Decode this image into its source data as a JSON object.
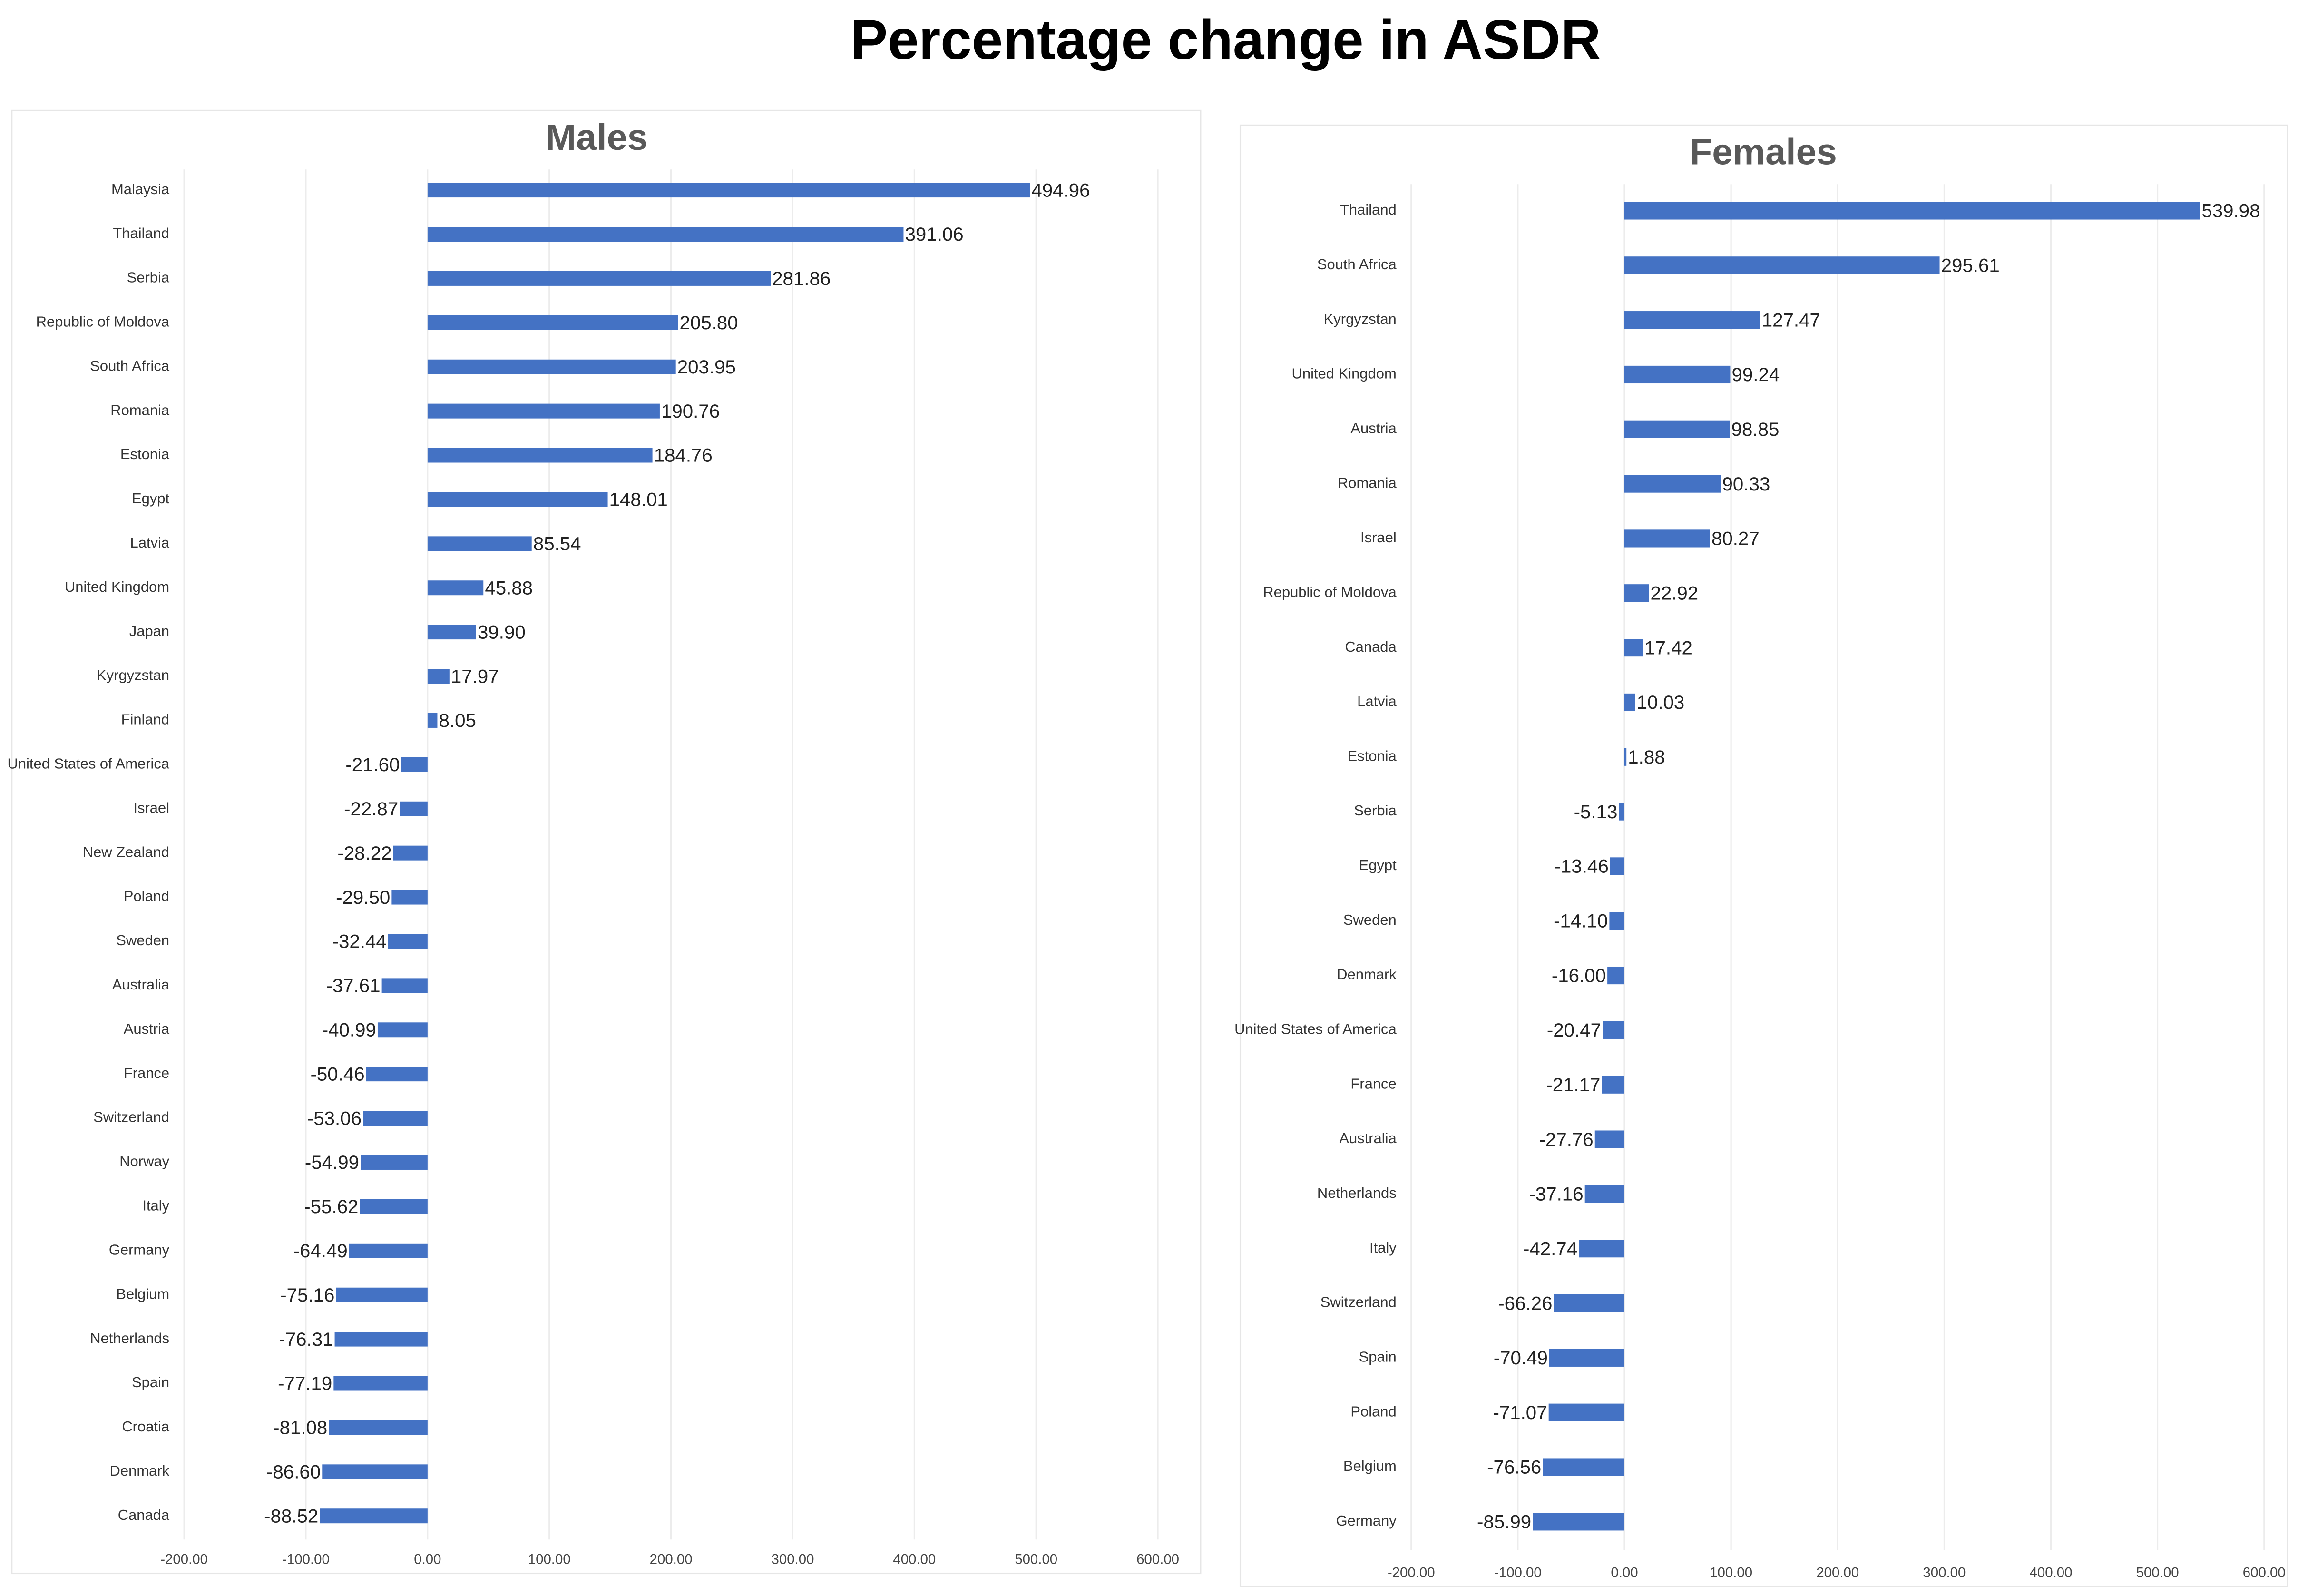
{
  "title": "Percentage change in ASDR",
  "chart_data": [
    {
      "type": "barh",
      "title": "Males",
      "color": "#4472c4",
      "grid": true,
      "categories": [
        "Malaysia",
        "Thailand",
        "Serbia",
        "Republic of Moldova",
        "South Africa",
        "Romania",
        "Estonia",
        "Egypt",
        "Latvia",
        "United Kingdom",
        "Japan",
        "Kyrgyzstan",
        "Finland",
        "United States of America",
        "Israel",
        "New Zealand",
        "Poland",
        "Sweden",
        "Australia",
        "Austria",
        "France",
        "Switzerland",
        "Norway",
        "Italy",
        "Germany",
        "Belgium",
        "Netherlands",
        "Spain",
        "Croatia",
        "Denmark",
        "Canada"
      ],
      "values": [
        494.96,
        391.06,
        281.86,
        205.8,
        203.95,
        190.76,
        184.76,
        148.01,
        85.54,
        45.88,
        39.9,
        17.97,
        8.05,
        -21.6,
        -22.87,
        -28.22,
        -29.5,
        -32.44,
        -37.61,
        -40.99,
        -50.46,
        -53.06,
        -54.99,
        -55.62,
        -64.49,
        -75.16,
        -76.31,
        -77.19,
        -81.08,
        -86.6,
        -88.52
      ],
      "value_labels": [
        "494.96",
        "391.06",
        "281.86",
        "205.80",
        "203.95",
        "190.76",
        "184.76",
        "148.01",
        "85.54",
        "45.88",
        "39.90",
        "17.97",
        "8.05",
        "-21.60",
        "-22.87",
        "-28.22",
        "-29.50",
        "-32.44",
        "-37.61",
        "-40.99",
        "-50.46",
        "-53.06",
        "-54.99",
        "-55.62",
        "-64.49",
        "-75.16",
        "-76.31",
        "-77.19",
        "-81.08",
        "-86.60",
        "-88.52"
      ],
      "xlim": [
        -200,
        600
      ],
      "xticks": [
        {
          "value": -200,
          "label": "-200.00"
        },
        {
          "value": -100,
          "label": "-100.00"
        },
        {
          "value": 0,
          "label": "0.00"
        },
        {
          "value": 100,
          "label": "100.00"
        },
        {
          "value": 200,
          "label": "200.00"
        },
        {
          "value": 300,
          "label": "300.00"
        },
        {
          "value": 400,
          "label": "400.00"
        },
        {
          "value": 500,
          "label": "500.00"
        },
        {
          "value": 600,
          "label": "600.00"
        }
      ]
    },
    {
      "type": "barh",
      "title": "Females",
      "color": "#4472c4",
      "grid": true,
      "categories": [
        "Thailand",
        "South Africa",
        "Kyrgyzstan",
        "United Kingdom",
        "Austria",
        "Romania",
        "Israel",
        "Republic of Moldova",
        "Canada",
        "Latvia",
        "Estonia",
        "Serbia",
        "Egypt",
        "Sweden",
        "Denmark",
        "United States of America",
        "France",
        "Australia",
        "Netherlands",
        "Italy",
        "Switzerland",
        "Spain",
        "Poland",
        "Belgium",
        "Germany"
      ],
      "values": [
        539.98,
        295.61,
        127.47,
        99.24,
        98.85,
        90.33,
        80.27,
        22.92,
        17.42,
        10.03,
        1.88,
        -5.13,
        -13.46,
        -14.1,
        -16,
        -20.47,
        -21.17,
        -27.76,
        -37.16,
        -42.74,
        -66.26,
        -70.49,
        -71.07,
        -76.56,
        -85.99
      ],
      "value_labels": [
        "539.98",
        "295.61",
        "127.47",
        "99.24",
        "98.85",
        "90.33",
        "80.27",
        "22.92",
        "17.42",
        "10.03",
        "1.88",
        "-5.13",
        "-13.46",
        "-14.10",
        "-16.00",
        "-20.47",
        "-21.17",
        "-27.76",
        "-37.16",
        "-42.74",
        "-66.26",
        "-70.49",
        "-71.07",
        "-76.56",
        "-85.99"
      ],
      "xlim": [
        -200,
        600
      ],
      "xticks": [
        {
          "value": -200,
          "label": "-200.00"
        },
        {
          "value": -100,
          "label": "-100.00"
        },
        {
          "value": 0,
          "label": "0.00"
        },
        {
          "value": 100,
          "label": "100.00"
        },
        {
          "value": 200,
          "label": "200.00"
        },
        {
          "value": 300,
          "label": "300.00"
        },
        {
          "value": 400,
          "label": "400.00"
        },
        {
          "value": 500,
          "label": "500.00"
        },
        {
          "value": 600,
          "label": "600.00"
        }
      ]
    }
  ]
}
